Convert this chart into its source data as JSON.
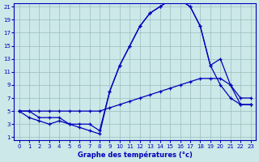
{
  "title": "Graphe des températures (°c)",
  "bg_color": "#cce8e8",
  "line_color": "#0000bb",
  "x_min": 0,
  "x_max": 23,
  "y_min": 1,
  "y_max": 21,
  "y_ticks": [
    1,
    3,
    5,
    7,
    9,
    11,
    13,
    15,
    17,
    19,
    21
  ],
  "x_ticks": [
    0,
    1,
    2,
    3,
    4,
    5,
    6,
    7,
    8,
    9,
    10,
    11,
    12,
    13,
    14,
    15,
    16,
    17,
    18,
    19,
    20,
    21,
    22,
    23
  ],
  "line1_x": [
    0,
    1,
    2,
    3,
    4,
    5,
    6,
    7,
    8,
    9,
    10,
    11,
    12,
    13,
    14,
    15,
    16,
    17,
    18,
    19,
    20,
    21,
    22,
    23
  ],
  "line1_y": [
    5,
    5,
    4,
    4,
    4,
    3,
    3,
    3,
    2,
    8,
    12,
    15,
    18,
    20,
    21,
    22,
    22,
    21,
    18,
    12,
    9,
    7,
    6,
    6
  ],
  "line2_x": [
    0,
    1,
    2,
    3,
    4,
    5,
    6,
    7,
    8,
    9,
    10,
    11,
    12,
    13,
    14,
    15,
    16,
    17,
    18,
    19,
    20,
    21,
    22,
    23
  ],
  "line2_y": [
    5,
    4,
    3.5,
    3,
    3.5,
    3,
    2.5,
    2,
    1.5,
    8,
    12,
    15,
    18,
    20,
    21,
    22,
    22,
    21,
    18,
    12,
    13,
    9,
    7,
    7
  ],
  "line3_x": [
    0,
    1,
    2,
    3,
    4,
    5,
    6,
    7,
    8,
    9,
    10,
    11,
    12,
    13,
    14,
    15,
    16,
    17,
    18,
    19,
    20,
    21,
    22,
    23
  ],
  "line3_y": [
    5,
    5,
    5,
    5,
    5,
    5,
    5,
    5,
    5,
    5.5,
    6,
    6.5,
    7,
    7.5,
    8,
    8.5,
    9,
    9.5,
    10,
    10,
    10,
    9,
    6,
    6
  ]
}
